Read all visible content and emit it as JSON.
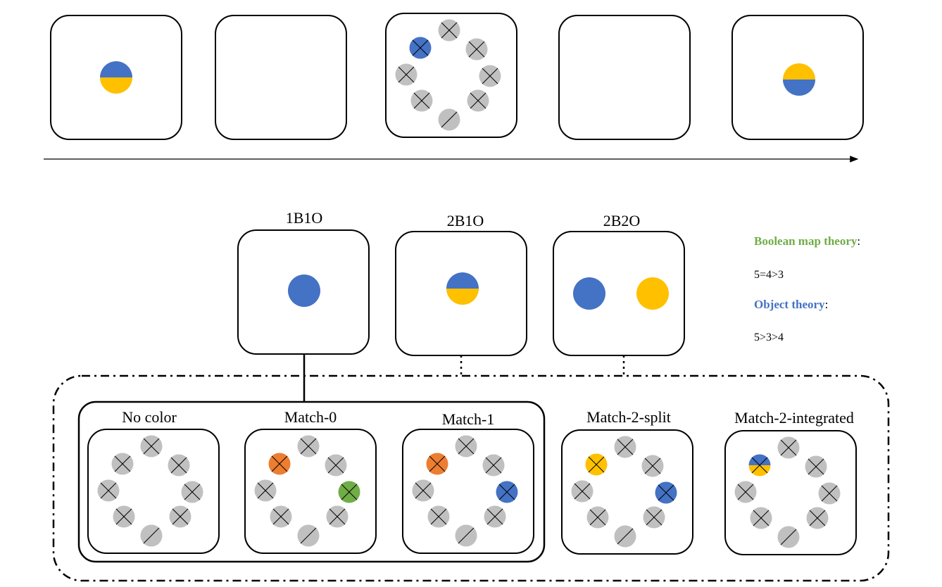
{
  "colors": {
    "blue": "#4472C4",
    "yellow": "#FFC000",
    "orange": "#ED7D31",
    "green": "#70AD47",
    "gray": "#C0C0C0",
    "boolean_theory": "#70AD47",
    "object_theory": "#4472C4"
  },
  "timeline": {
    "frames": [
      {
        "id": "memory-display",
        "content": "blue-top-yellow-bottom"
      },
      {
        "id": "blank-1",
        "content": "none"
      },
      {
        "id": "search-display",
        "content": "ring",
        "colored": {
          "upper-left": "blue"
        }
      },
      {
        "id": "blank-2",
        "content": "none"
      },
      {
        "id": "test-display",
        "content": "yellow-top-blue-bottom"
      }
    ]
  },
  "conditions": [
    {
      "label": "1B1O",
      "content": "single-blue"
    },
    {
      "label": "2B1O",
      "content": "blue-top-yellow-bottom"
    },
    {
      "label": "2B2O",
      "content": "blue-and-yellow-separate"
    }
  ],
  "search_arrays": [
    {
      "label": "No color",
      "colored": {}
    },
    {
      "label": "Match-0",
      "colored": {
        "upper-left": "orange",
        "right": "green"
      }
    },
    {
      "label": "Match-1",
      "colored": {
        "upper-left": "orange",
        "right": "blue"
      }
    },
    {
      "label": "Match-2-split",
      "colored": {
        "upper-left": "yellow",
        "right": "blue"
      }
    },
    {
      "label": "Match-2-integrated",
      "colored": {
        "upper-left": "split-blue-yellow"
      }
    }
  ],
  "theories": {
    "boolean": {
      "name": "Boolean map theory",
      "suffix": ":",
      "prediction": "5=4>3"
    },
    "object": {
      "name": "Object theory",
      "suffix": ":",
      "prediction": "5>3>4"
    }
  }
}
